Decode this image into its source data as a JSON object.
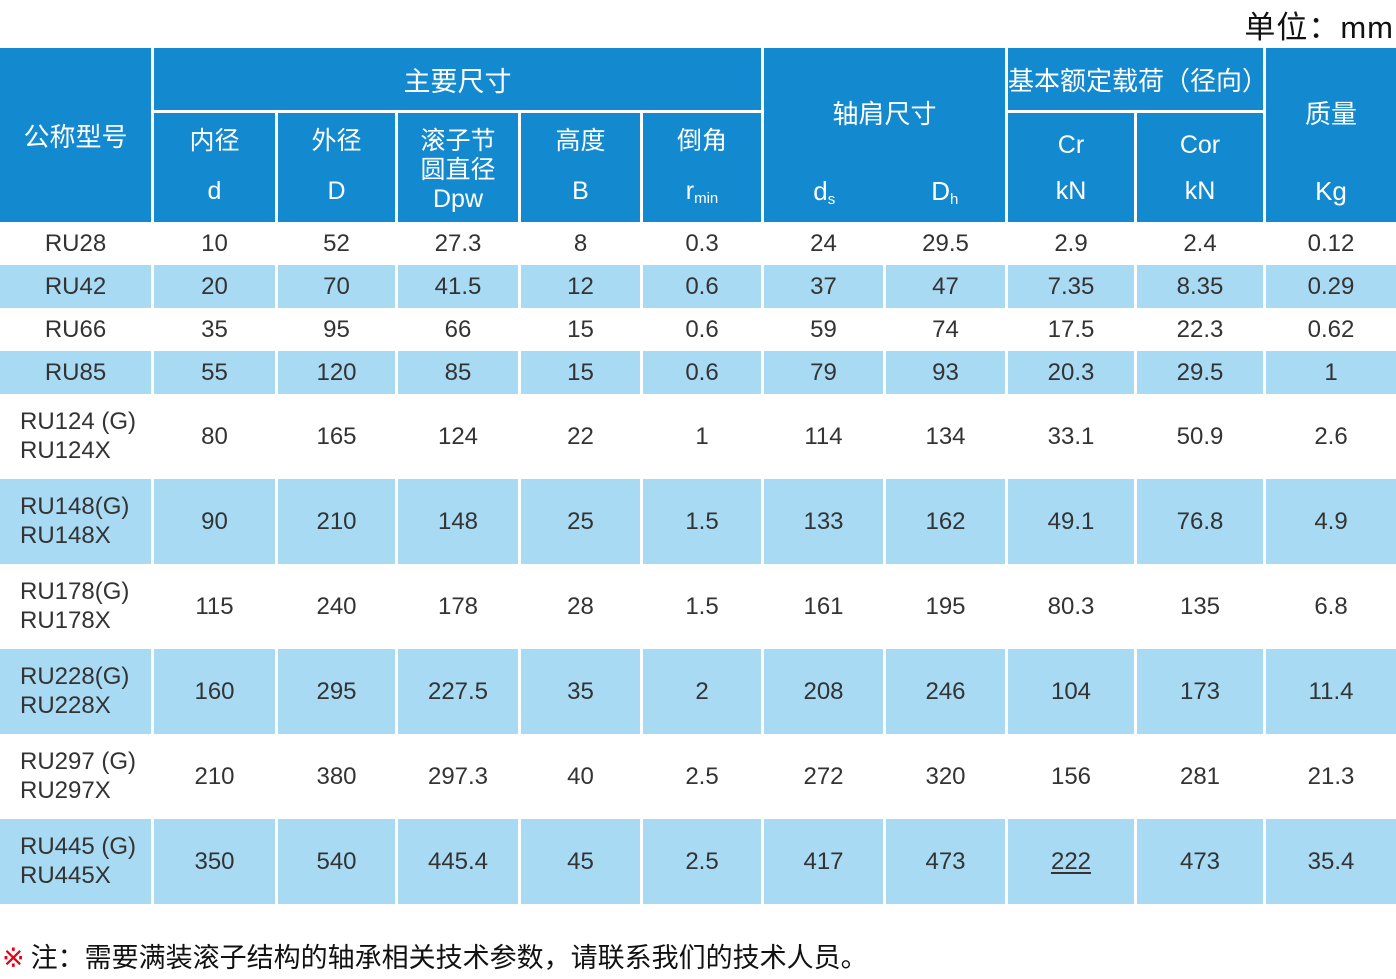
{
  "unit_label": "单位：mm",
  "table": {
    "header": {
      "model": "公称型号",
      "main_dims": "主要尺寸",
      "dims": [
        {
          "name": "内径",
          "symbol": "d",
          "sub": ""
        },
        {
          "name": "外径",
          "symbol": "D",
          "sub": ""
        },
        {
          "name": "滚子节\n圆直径",
          "symbol": "Dpw",
          "sub": ""
        },
        {
          "name": "高度",
          "symbol": "B",
          "sub": ""
        },
        {
          "name": "倒角",
          "symbol": "r",
          "sub": "min"
        }
      ],
      "shoulder": {
        "title": "轴肩尺寸",
        "cols": [
          {
            "symbol": "d",
            "sub": "s"
          },
          {
            "symbol": "D",
            "sub": "h"
          }
        ]
      },
      "load": {
        "title": "基本额定载荷（径向）",
        "cols": [
          {
            "symbol": "Cr",
            "unit": "kN"
          },
          {
            "symbol": "Cor",
            "unit": "kN"
          }
        ]
      },
      "mass": {
        "title": "质量",
        "unit": "Kg"
      }
    },
    "rows": [
      {
        "model": [
          "RU28"
        ],
        "values": [
          "10",
          "52",
          "27.3",
          "8",
          "0.3",
          "24",
          "29.5",
          "2.9",
          "2.4",
          "0.12"
        ]
      },
      {
        "model": [
          "RU42"
        ],
        "values": [
          "20",
          "70",
          "41.5",
          "12",
          "0.6",
          "37",
          "47",
          "7.35",
          "8.35",
          "0.29"
        ]
      },
      {
        "model": [
          "RU66"
        ],
        "values": [
          "35",
          "95",
          "66",
          "15",
          "0.6",
          "59",
          "74",
          "17.5",
          "22.3",
          "0.62"
        ]
      },
      {
        "model": [
          "RU85"
        ],
        "values": [
          "55",
          "120",
          "85",
          "15",
          "0.6",
          "79",
          "93",
          "20.3",
          "29.5",
          "1"
        ]
      },
      {
        "model": [
          "RU124 (G)",
          "RU124X"
        ],
        "values": [
          "80",
          "165",
          "124",
          "22",
          "1",
          "114",
          "134",
          "33.1",
          "50.9",
          "2.6"
        ]
      },
      {
        "model": [
          "RU148(G)",
          "RU148X"
        ],
        "values": [
          "90",
          "210",
          "148",
          "25",
          "1.5",
          "133",
          "162",
          "49.1",
          "76.8",
          "4.9"
        ]
      },
      {
        "model": [
          "RU178(G)",
          "RU178X"
        ],
        "values": [
          "115",
          "240",
          "178",
          "28",
          "1.5",
          "161",
          "195",
          "80.3",
          "135",
          "6.8"
        ]
      },
      {
        "model": [
          "RU228(G)",
          "RU228X"
        ],
        "values": [
          "160",
          "295",
          "227.5",
          "35",
          "2",
          "208",
          "246",
          "104",
          "173",
          "11.4"
        ]
      },
      {
        "model": [
          "RU297 (G)",
          "RU297X"
        ],
        "values": [
          "210",
          "380",
          "297.3",
          "40",
          "2.5",
          "272",
          "320",
          "156",
          "281",
          "21.3"
        ]
      },
      {
        "model": [
          "RU445 (G)",
          "RU445X"
        ],
        "values": [
          "350",
          "540",
          "445.4",
          "45",
          "2.5",
          "417",
          "473",
          "222",
          "473",
          "35.4"
        ],
        "underline_value_indexes": [
          7
        ]
      }
    ]
  },
  "footnote": {
    "marker": "※",
    "text": "注：需要满装滚子结构的轴承相关技术参数，请联系我们的技术人员。"
  },
  "colors": {
    "header_blue": "#1389cf",
    "row_blue": "#a8daf3",
    "marker_red": "#e60012",
    "text_dark": "#333333"
  }
}
